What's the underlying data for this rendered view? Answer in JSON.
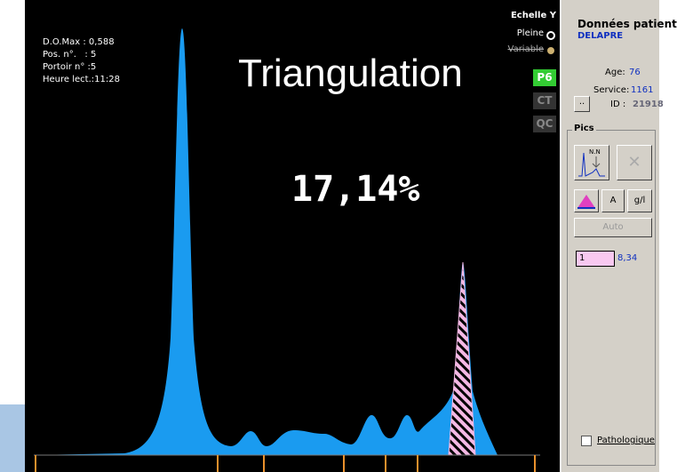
{
  "plot": {
    "info": [
      "D.O.Max : 0,588",
      "Pos. n°.   : 5",
      "Portoir n° :5",
      "Heure lect.:11:28"
    ],
    "scale_title": "Echelle Y",
    "scale_options": [
      "Pleine",
      "Variable"
    ],
    "buttons": [
      "P6",
      "CT",
      "QC"
    ],
    "overlay_title": "Triangulation",
    "overlay_value": "17,14%"
  },
  "patient": {
    "title": "Données patient",
    "name": "DELAPRE",
    "age_label": "Age:",
    "age": "76",
    "service_label": "Service:",
    "service": "1161",
    "id_label": "ID :",
    "id": "21918",
    "more_button": ".."
  },
  "peaks": {
    "title": "Pics",
    "icon_label": "N.N",
    "buttons": [
      "A",
      "g/l"
    ],
    "auto_button": "Auto",
    "peak_index": "1",
    "peak_value": "8,34",
    "pathologique": "Pathologique"
  }
}
